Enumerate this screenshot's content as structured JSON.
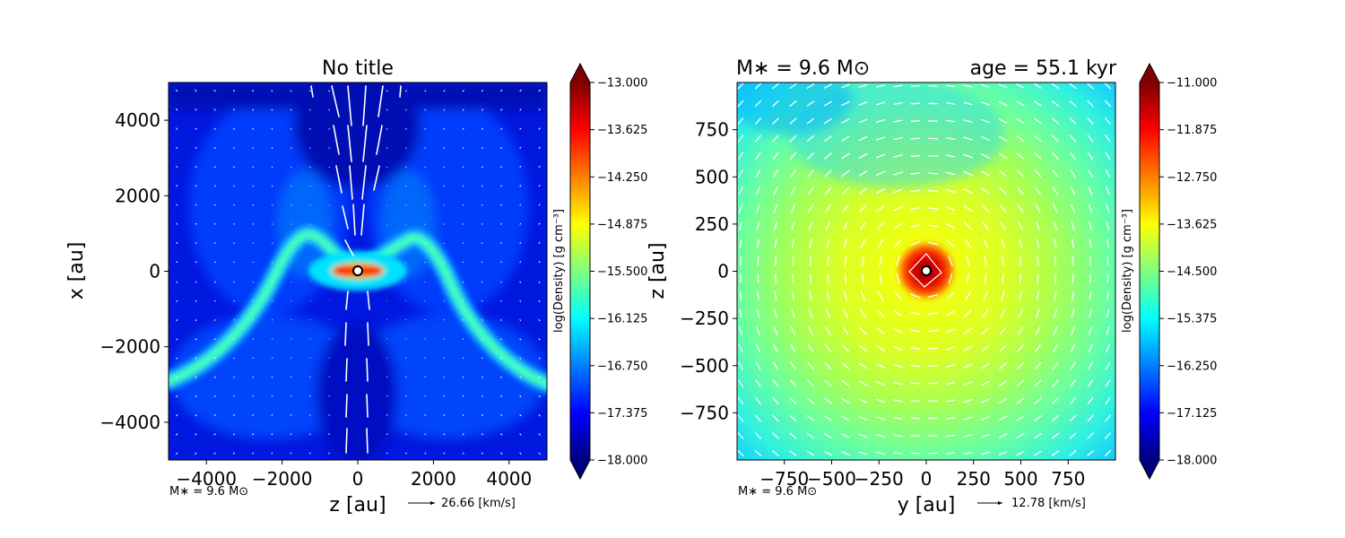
{
  "colormap_stops": [
    "#00007f",
    "#0000ff",
    "#007fff",
    "#00ffff",
    "#7fff7f",
    "#ffff00",
    "#ff7f00",
    "#ff0000",
    "#7f0000"
  ],
  "arrow_color": "#ffffff",
  "chart_data": [
    {
      "type": "heatmap",
      "title": "No title",
      "xlabel": "z [au]",
      "ylabel": "x [au]",
      "xlim": [
        -5000,
        5000
      ],
      "ylim": [
        -5000,
        5000
      ],
      "xticks": [
        -4000,
        -2000,
        0,
        2000,
        4000
      ],
      "yticks": [
        -4000,
        -2000,
        0,
        2000,
        4000
      ],
      "xtick_labels": [
        "−4000",
        "−2000",
        "0",
        "2000",
        "4000"
      ],
      "ytick_labels": [
        "−4000",
        "−2000",
        "0",
        "2000",
        "4000"
      ],
      "colorbar": {
        "label": "log(Density) [g cm⁻³]",
        "min": -18.0,
        "max": -13.0,
        "ticks": [
          -13.0,
          -13.625,
          -14.25,
          -14.875,
          -15.5,
          -16.125,
          -16.75,
          -17.375,
          -18.0
        ],
        "tick_labels": [
          "−13.000",
          "−13.625",
          "−14.250",
          "−14.875",
          "−15.500",
          "−16.125",
          "−16.750",
          "−17.375",
          "−18.000"
        ]
      },
      "field": "edge-on outflow cavity with thin disk at x = 0 and curved dense filaments",
      "star_label": "M∗ = 9.6 M⊙",
      "velocity_key": "26.66 [km/s]",
      "grid": false
    },
    {
      "type": "heatmap",
      "title_left": "M∗ = 9.6 M⊙",
      "title_right": "age = 55.1 kyr",
      "xlabel": "y [au]",
      "ylabel": "z [au]",
      "xlim": [
        -1000,
        1000
      ],
      "ylim": [
        -1000,
        1000
      ],
      "xticks": [
        -750,
        -500,
        -250,
        0,
        250,
        500,
        750
      ],
      "yticks": [
        -750,
        -500,
        -250,
        0,
        250,
        500,
        750
      ],
      "xtick_labels": [
        "−750",
        "−500",
        "−250",
        "0",
        "250",
        "500",
        "750"
      ],
      "ytick_labels": [
        "−750",
        "−500",
        "−250",
        "0",
        "250",
        "500",
        "750"
      ],
      "colorbar": {
        "label": "log(Density) [g cm⁻³]",
        "min": -18.0,
        "max": -11.0,
        "ticks": [
          -11.0,
          -11.875,
          -12.75,
          -13.625,
          -14.5,
          -15.375,
          -16.25,
          -17.125,
          -18.0
        ],
        "tick_labels": [
          "−11.000",
          "−11.875",
          "−12.750",
          "−13.625",
          "−14.500",
          "−15.375",
          "−16.250",
          "−17.125",
          "−18.000"
        ]
      },
      "field": "face-on rotating disk, density peak at center",
      "star_label": "M∗ = 9.6 M⊙",
      "velocity_key": "12.78 [km/s]",
      "grid": false
    }
  ]
}
